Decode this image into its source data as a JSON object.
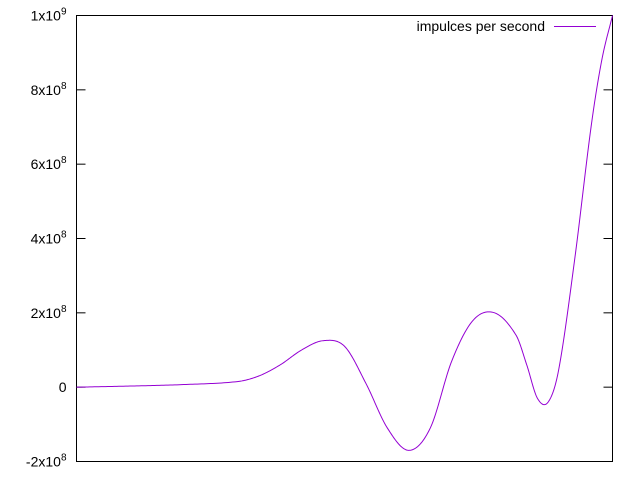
{
  "chart_data": {
    "type": "line",
    "title": "",
    "xlabel": "",
    "ylabel": "",
    "ylim": [
      -200000000,
      1000000000
    ],
    "y_ticks": [
      {
        "value": -200000000,
        "base": "-2x10",
        "exp": "8"
      },
      {
        "value": 0,
        "base": "0",
        "exp": ""
      },
      {
        "value": 200000000,
        "base": "2x10",
        "exp": "8"
      },
      {
        "value": 400000000,
        "base": "4x10",
        "exp": "8"
      },
      {
        "value": 600000000,
        "base": "6x10",
        "exp": "8"
      },
      {
        "value": 800000000,
        "base": "8x10",
        "exp": "8"
      },
      {
        "value": 1000000000,
        "base": "1x10",
        "exp": "9"
      }
    ],
    "x_tick_labels": [],
    "grid": false,
    "legend_position": "top-right",
    "series": [
      {
        "name": "impulces per second",
        "color": "#9400d3",
        "x": [
          0,
          0.1,
          0.2,
          0.3,
          0.34,
          0.38,
          0.42,
          0.46,
          0.5,
          0.54,
          0.58,
          0.62,
          0.66,
          0.7,
          0.74,
          0.78,
          0.82,
          0.84,
          0.86,
          0.88,
          0.9,
          0.93,
          0.96,
          0.98,
          1.0
        ],
        "values": [
          0,
          3000000,
          7000000,
          15000000,
          30000000,
          60000000,
          100000000,
          125000000,
          110000000,
          10000000,
          -110000000,
          -170000000,
          -110000000,
          70000000,
          180000000,
          200000000,
          140000000,
          60000000,
          -30000000,
          -40000000,
          50000000,
          350000000,
          700000000,
          880000000,
          1000000000
        ]
      }
    ]
  }
}
